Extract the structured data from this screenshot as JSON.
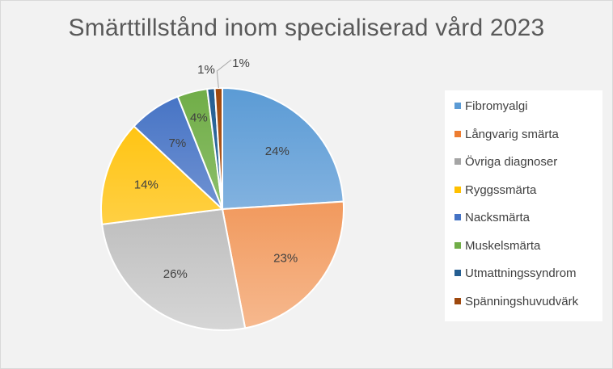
{
  "chart_data": {
    "type": "pie",
    "title": "Smärttillstånd inom specialiserad vård 2023",
    "legend_position": "right",
    "slices": [
      {
        "name": "Fibromyalgi",
        "value": 24,
        "label": "24%",
        "color": "#5b9bd5",
        "color_light": "#a9c9ea"
      },
      {
        "name": "Långvarig smärta",
        "value": 23,
        "label": "23%",
        "color": "#ed7d31",
        "color_light": "#f6b98f"
      },
      {
        "name": "Övriga diagnoser",
        "value": 26,
        "label": "26%",
        "color": "#a5a5a5",
        "color_light": "#d6d6d6"
      },
      {
        "name": "Ryggssmärta",
        "value": 14,
        "label": "14%",
        "color": "#ffc000",
        "color_light": "#ffdc78"
      },
      {
        "name": "Nacksmärta",
        "value": 7,
        "label": "7%",
        "color": "#4472c4",
        "color_light": "#9bb2e0"
      },
      {
        "name": "Muskelsmärta",
        "value": 4,
        "label": "4%",
        "color": "#70ad47",
        "color_light": "#a9d08e"
      },
      {
        "name": "Utmattningssyndrom",
        "value": 1,
        "label": "1%",
        "color": "#255e91",
        "color_light": "#4a86bf"
      },
      {
        "name": "Spänningshuvudvärk",
        "value": 1,
        "label": "1%",
        "color": "#9e480e",
        "color_light": "#d0763a"
      }
    ]
  }
}
